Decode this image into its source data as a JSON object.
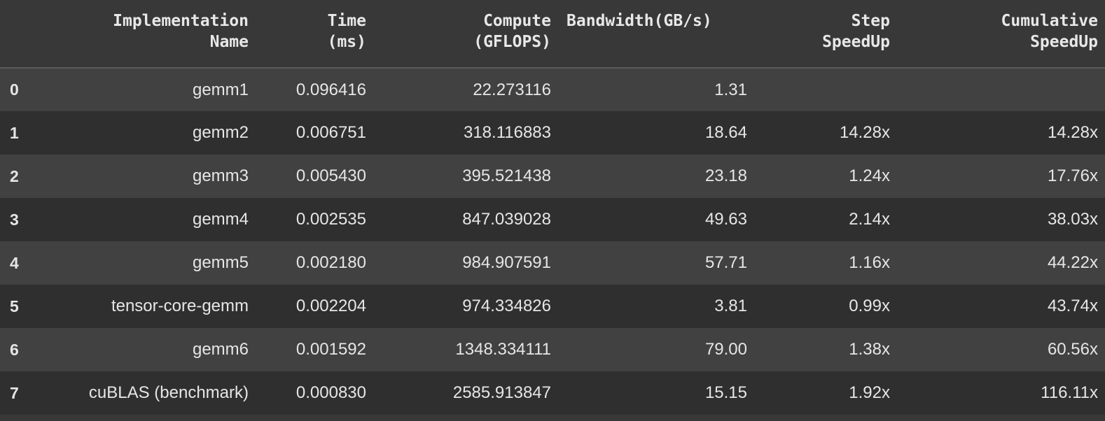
{
  "table": {
    "columns": [
      {
        "line1": "Implementation",
        "line2": "Name"
      },
      {
        "line1": "Time",
        "line2": "(ms)"
      },
      {
        "line1": "Compute",
        "line2": "(GFLOPS)"
      },
      {
        "line1": "Bandwidth(GB/s)",
        "line2": ""
      },
      {
        "line1": "Step",
        "line2": "SpeedUp"
      },
      {
        "line1": "Cumulative",
        "line2": "SpeedUp"
      }
    ],
    "rows": [
      {
        "index": "0",
        "name": "gemm1",
        "time": "0.096416",
        "compute": "22.273116",
        "bandwidth": "1.31",
        "step": "",
        "cumulative": ""
      },
      {
        "index": "1",
        "name": "gemm2",
        "time": "0.006751",
        "compute": "318.116883",
        "bandwidth": "18.64",
        "step": "14.28x",
        "cumulative": "14.28x"
      },
      {
        "index": "2",
        "name": "gemm3",
        "time": "0.005430",
        "compute": "395.521438",
        "bandwidth": "23.18",
        "step": "1.24x",
        "cumulative": "17.76x"
      },
      {
        "index": "3",
        "name": "gemm4",
        "time": "0.002535",
        "compute": "847.039028",
        "bandwidth": "49.63",
        "step": "2.14x",
        "cumulative": "38.03x"
      },
      {
        "index": "4",
        "name": "gemm5",
        "time": "0.002180",
        "compute": "984.907591",
        "bandwidth": "57.71",
        "step": "1.16x",
        "cumulative": "44.22x"
      },
      {
        "index": "5",
        "name": "tensor-core-gemm",
        "time": "0.002204",
        "compute": "974.334826",
        "bandwidth": "3.81",
        "step": "0.99x",
        "cumulative": "43.74x"
      },
      {
        "index": "6",
        "name": "gemm6",
        "time": "0.001592",
        "compute": "1348.334111",
        "bandwidth": "79.00",
        "step": "1.38x",
        "cumulative": "60.56x"
      },
      {
        "index": "7",
        "name": "cuBLAS (benchmark)",
        "time": "0.000830",
        "compute": "2585.913847",
        "bandwidth": "15.15",
        "step": "1.92x",
        "cumulative": "116.11x"
      }
    ]
  },
  "colors": {
    "header_bg": "#383838",
    "row_odd_bg": "#414141",
    "row_even_bg": "#2f2f2f",
    "text": "#e6e6e6"
  }
}
